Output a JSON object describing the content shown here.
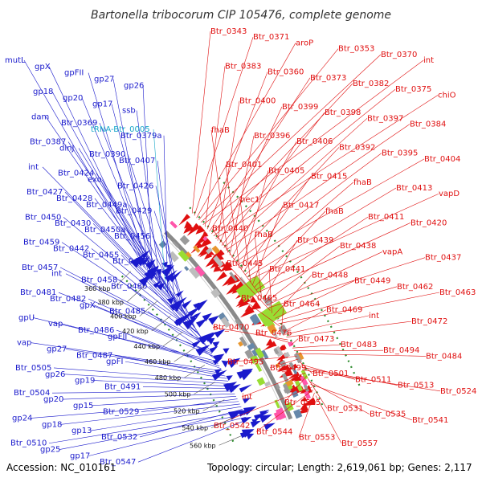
{
  "title": "Bartonella tribocorum CIP 105476, complete genome",
  "accession": "Accession: NC_010161",
  "summary": "Topology: circular; Length: 2,619,061 bp; Genes: 2,117",
  "colors": {
    "reverse": "#1a1acc",
    "forward": "#e01010",
    "trna": "#19a7c9",
    "backbone": "#8a8a8a",
    "dots": "#2e8b2e"
  },
  "scale_labels": [
    "360 kbp",
    "380 kbp",
    "400 kbp",
    "420 kbp",
    "440 kbp",
    "460 kbp",
    "480 kbp",
    "500 kbp",
    "520 kbp",
    "540 kbp",
    "560 kbp"
  ],
  "reverse_labels": [
    "mutL",
    "gpX",
    "gpFII",
    "gp27",
    "gp26",
    "gp18",
    "gp20",
    "gp17",
    "ssb",
    "dam",
    "Btr_0369",
    "tRNA-Btr_0005",
    "Btr_0379a",
    "Btr_0387",
    "dinJ",
    "Btr_0390",
    "Btr_0407",
    "int",
    "Btr_0424",
    "exo",
    "Btr_0426",
    "Btr_0427",
    "Btr_0428",
    "Btr_0449a",
    "Btr_0429",
    "Btr_0450",
    "Btr_0430",
    "Btr_0450a",
    "Btr_0456",
    "Btr_0459",
    "Btr_0442",
    "Btr_0455",
    "Btr_0452",
    "Btr_0457",
    "int",
    "Btr_0458",
    "Btr_0480",
    "Btr_0481",
    "Btr_0482",
    "gpX",
    "Btr_0485",
    "gpU",
    "vap",
    "Btr_0486",
    "gpFII",
    "vap",
    "gp27",
    "Btr_0487",
    "gpFI",
    "Btr_0505",
    "gp26",
    "gp19",
    "Btr_0491",
    "Btr_0504",
    "gp20",
    "gp15",
    "Btr_0529",
    "gp24",
    "gp18",
    "gp13",
    "Btr_0532",
    "Btr_0510",
    "gp25",
    "gp17",
    "Btr_0547"
  ],
  "forward_labels": [
    "Btr_0343",
    "Btr_0371",
    "aroP",
    "Btr_0353",
    "Btr_0370",
    "int",
    "Btr_0383",
    "Btr_0360",
    "Btr_0373",
    "Btr_0382",
    "Btr_0375",
    "chiO",
    "Btr_0400",
    "Btr_0399",
    "Btr_0398",
    "Btr_0397",
    "Btr_0384",
    "fhaB",
    "Btr_0396",
    "Btr_0406",
    "Btr_0392",
    "Btr_0395",
    "Btr_0404",
    "Btr_0401",
    "Btr_0405",
    "Btr_0415",
    "fhaB",
    "Btr_0413",
    "vapD",
    "hec1",
    "Btr_0417",
    "fhaB",
    "Btr_0411",
    "Btr_0420",
    "Btr_0440",
    "fhaB",
    "Btr_0439",
    "Btr_0438",
    "vapA",
    "Btr_0437",
    "Btr_0445",
    "Btr_0441",
    "Btr_0448",
    "Btr_0449",
    "Btr_0462",
    "Btr_0463",
    "Btr_0465",
    "Btr_0464",
    "Btr_0469",
    "int",
    "Btr_0472",
    "Btr_0470",
    "Btr_0476",
    "Btr_0473",
    "Btr_0483",
    "Btr_0494",
    "Btr_0484",
    "Btr_0495",
    "Btr_0499",
    "Btr_0501",
    "Btr_0511",
    "Btr_0513",
    "Btr_0524",
    "int",
    "Btr_0525",
    "Btr_0531",
    "Btr_0535",
    "Btr_0541",
    "Btr_0542",
    "Btr_0544",
    "Btr_0553",
    "Btr_0557"
  ]
}
